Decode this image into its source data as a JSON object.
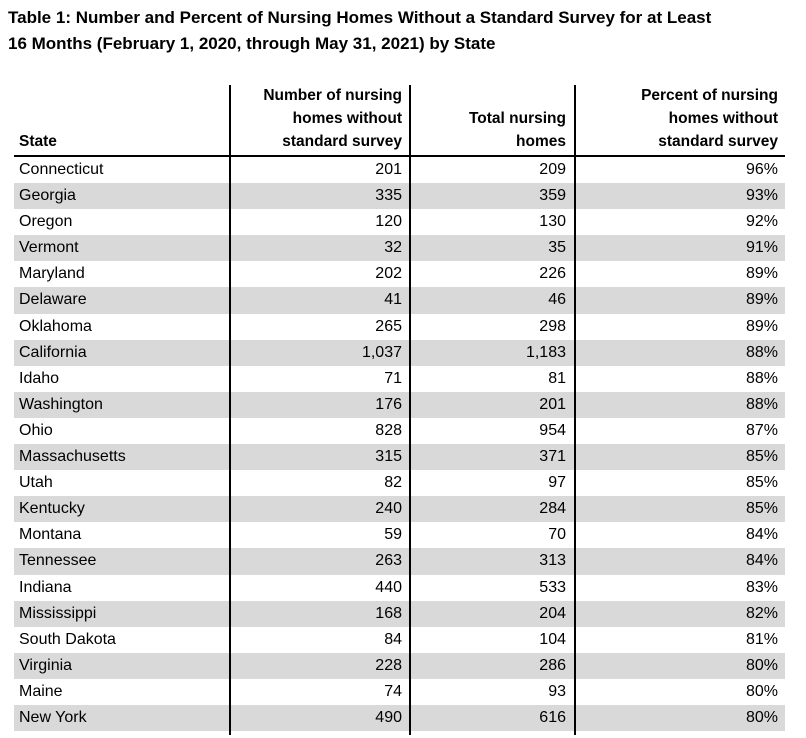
{
  "title_line1": "Table 1: Number and Percent of Nursing Homes Without a Standard Survey for at Least",
  "title_line2": "16 Months (February 1, 2020, through May 31, 2021) by State",
  "table": {
    "header": [
      {
        "lines": [
          "State"
        ]
      },
      {
        "lines": [
          "Number of nursing",
          "homes without",
          "standard survey"
        ]
      },
      {
        "lines": [
          "Total nursing",
          "homes"
        ]
      },
      {
        "lines": [
          "Percent of nursing",
          "homes without",
          "standard survey"
        ]
      }
    ],
    "rows": [
      [
        "Connecticut",
        "201",
        "209",
        "96%"
      ],
      [
        "Georgia",
        "335",
        "359",
        "93%"
      ],
      [
        "Oregon",
        "120",
        "130",
        "92%"
      ],
      [
        "Vermont",
        "32",
        "35",
        "91%"
      ],
      [
        "Maryland",
        "202",
        "226",
        "89%"
      ],
      [
        "Delaware",
        "41",
        "46",
        "89%"
      ],
      [
        "Oklahoma",
        "265",
        "298",
        "89%"
      ],
      [
        "California",
        "1,037",
        "1,183",
        "88%"
      ],
      [
        "Idaho",
        "71",
        "81",
        "88%"
      ],
      [
        "Washington",
        "176",
        "201",
        "88%"
      ],
      [
        "Ohio",
        "828",
        "954",
        "87%"
      ],
      [
        "Massachusetts",
        "315",
        "371",
        "85%"
      ],
      [
        "Utah",
        "82",
        "97",
        "85%"
      ],
      [
        "Kentucky",
        "240",
        "284",
        "85%"
      ],
      [
        "Montana",
        "59",
        "70",
        "84%"
      ],
      [
        "Tennessee",
        "263",
        "313",
        "84%"
      ],
      [
        "Indiana",
        "440",
        "533",
        "83%"
      ],
      [
        "Mississippi",
        "168",
        "204",
        "82%"
      ],
      [
        "South Dakota",
        "84",
        "104",
        "81%"
      ],
      [
        "Virginia",
        "228",
        "286",
        "80%"
      ],
      [
        "Maine",
        "74",
        "93",
        "80%"
      ],
      [
        "New York",
        "490",
        "616",
        "80%"
      ]
    ]
  }
}
